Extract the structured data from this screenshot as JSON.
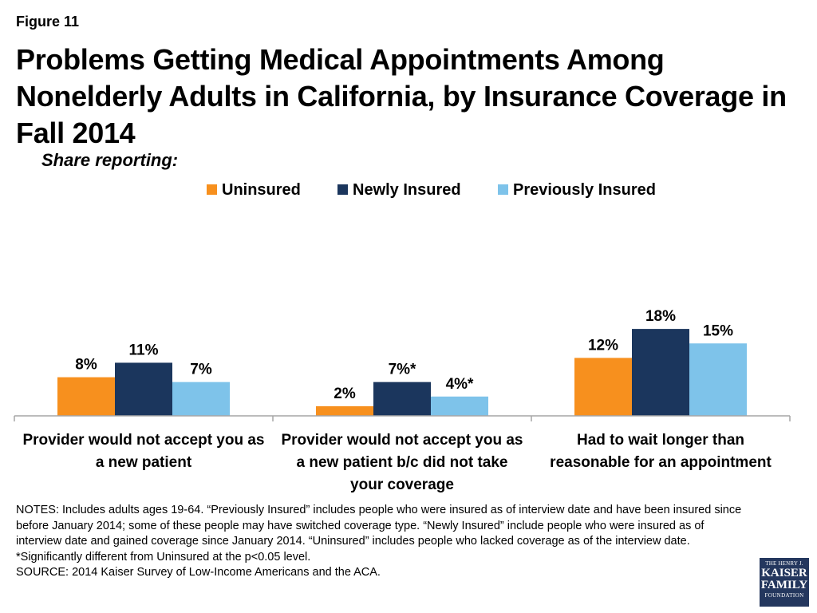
{
  "figure_label": "Figure 11",
  "title": "Problems Getting Medical Appointments Among Nonelderly Adults in California, by Insurance Coverage in Fall 2014",
  "subtitle": "Share reporting:",
  "colors": {
    "uninsured": "#f7901e",
    "newly_insured": "#1b365d",
    "previously_insured": "#7ec3ea",
    "axis": "#a6a6a6",
    "logo": "#24375e"
  },
  "chart_data": {
    "type": "bar",
    "categories": [
      "Provider would not accept you as a new patient",
      "Provider would not accept you as a new patient b/c did not take your coverage",
      "Had to wait longer than reasonable for an appointment"
    ],
    "category_lines": [
      [
        "Provider would not accept you as",
        "a new patient"
      ],
      [
        "Provider would not accept you as",
        "a new patient b/c did not take",
        "your coverage"
      ],
      [
        "Had to wait longer than",
        "reasonable for an appointment"
      ]
    ],
    "series": [
      {
        "name": "Uninsured",
        "values": [
          8,
          2,
          12
        ],
        "labels": [
          "8%",
          "2%",
          "12%"
        ]
      },
      {
        "name": "Newly Insured",
        "values": [
          11,
          7,
          18
        ],
        "labels": [
          "11%",
          "7%*",
          "18%"
        ]
      },
      {
        "name": "Previously Insured",
        "values": [
          7,
          4,
          15
        ],
        "labels": [
          "7%",
          "4%*",
          "15%"
        ]
      }
    ],
    "ylim": [
      0,
      40
    ],
    "legend_position": "top-center",
    "grid": false
  },
  "notes": "NOTES: Includes adults ages 19-64. “Previously Insured” includes people who were insured as of interview date and have been insured since before January 2014; some of these people may have switched coverage type. “Newly Insured” include people who were insured as of interview date and gained coverage since January 2014. “Uninsured” includes people who lacked coverage as of the interview date. *Significantly different from Uninsured at the p<0.05 level.",
  "source": "SOURCE: 2014 Kaiser Survey of Low-Income Americans and the ACA.",
  "logo": {
    "line1": "THE HENRY J.",
    "line2": "KAISER",
    "line3": "FAMILY",
    "line4": "FOUNDATION"
  }
}
